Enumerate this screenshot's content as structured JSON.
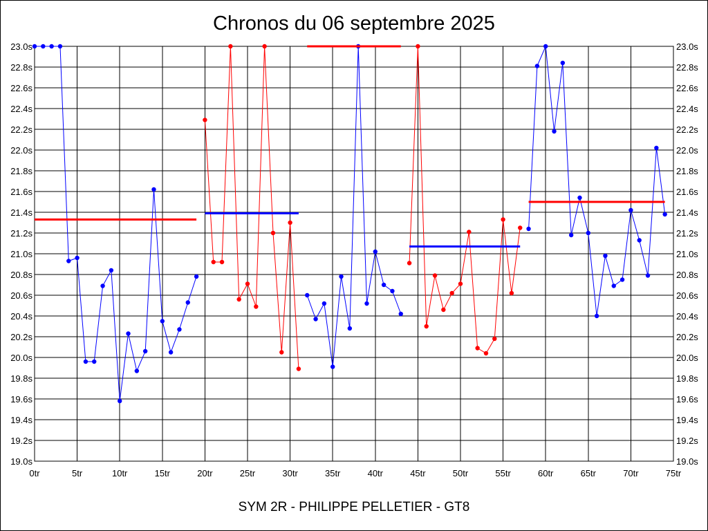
{
  "chart_data": {
    "type": "line",
    "title": "Chronos du 06 septembre 2025",
    "subtitle": "SYM 2R - PHILIPPE PELLETIER - GT8",
    "xlabel": "",
    "ylabel": "",
    "xlim": [
      0,
      75
    ],
    "ylim": [
      19.0,
      23.0
    ],
    "grid": true,
    "x_ticks": [
      "0tr",
      "5tr",
      "10tr",
      "15tr",
      "20tr",
      "25tr",
      "30tr",
      "35tr",
      "40tr",
      "45tr",
      "50tr",
      "55tr",
      "60tr",
      "65tr",
      "70tr",
      "75tr"
    ],
    "y_ticks": [
      "19.0s",
      "19.2s",
      "19.4s",
      "19.6s",
      "19.8s",
      "20.0s",
      "20.2s",
      "20.4s",
      "20.6s",
      "20.8s",
      "21.0s",
      "21.2s",
      "21.4s",
      "21.6s",
      "21.8s",
      "22.0s",
      "22.2s",
      "22.4s",
      "22.6s",
      "22.8s",
      "23.0s"
    ],
    "series": [
      {
        "color": "#0000ff",
        "x": [
          0,
          1,
          2,
          3,
          4,
          5,
          6,
          7,
          8,
          9,
          10,
          11,
          12,
          13,
          14,
          15,
          16,
          17,
          18,
          19
        ],
        "values": [
          23.0,
          23.0,
          23.0,
          23.0,
          20.93,
          20.96,
          19.96,
          19.96,
          20.69,
          20.84,
          19.58,
          20.23,
          19.87,
          20.06,
          21.62,
          20.35,
          20.05,
          20.27,
          20.53,
          20.78
        ]
      },
      {
        "color": "#ff0000",
        "x": [
          20,
          21,
          22,
          23,
          24,
          25,
          26,
          27,
          28,
          29,
          30,
          31
        ],
        "values": [
          22.29,
          20.92,
          20.92,
          23.0,
          20.56,
          20.71,
          20.49,
          23.0,
          21.2,
          20.05,
          21.3,
          19.89
        ]
      },
      {
        "color": "#0000ff",
        "x": [
          32,
          33,
          34,
          35,
          36,
          37,
          38,
          39,
          40,
          41,
          42,
          43
        ],
        "values": [
          20.6,
          20.37,
          20.52,
          19.91,
          20.78,
          20.28,
          23.0,
          20.52,
          21.02,
          20.7,
          20.64,
          20.42
        ]
      },
      {
        "color": "#ff0000",
        "x": [
          44,
          45,
          46,
          47,
          48,
          49,
          50,
          51,
          52,
          53,
          54,
          55,
          56,
          57
        ],
        "values": [
          20.91,
          23.0,
          20.3,
          20.79,
          20.46,
          20.62,
          20.71,
          21.21,
          20.09,
          20.04,
          20.18,
          21.33,
          20.62,
          21.25
        ]
      },
      {
        "color": "#0000ff",
        "x": [
          58,
          59,
          60,
          61,
          62,
          63,
          64,
          65,
          66,
          67,
          68,
          69,
          70,
          71,
          72,
          73,
          74
        ],
        "values": [
          21.24,
          22.81,
          23.0,
          22.18,
          22.84,
          21.18,
          21.54,
          21.2,
          20.4,
          20.98,
          20.69,
          20.75,
          21.42,
          21.13,
          20.79,
          22.02,
          21.38
        ]
      }
    ],
    "averages": [
      {
        "color": "#ff0000",
        "x": [
          0,
          19
        ],
        "value": 21.33
      },
      {
        "color": "#0000ff",
        "x": [
          20,
          31
        ],
        "value": 21.39
      },
      {
        "color": "#ff0000",
        "x": [
          32,
          43
        ],
        "value": 23.0
      },
      {
        "color": "#0000ff",
        "x": [
          44,
          57
        ],
        "value": 21.07
      },
      {
        "color": "#ff0000",
        "x": [
          58,
          74
        ],
        "value": 21.5
      }
    ]
  }
}
